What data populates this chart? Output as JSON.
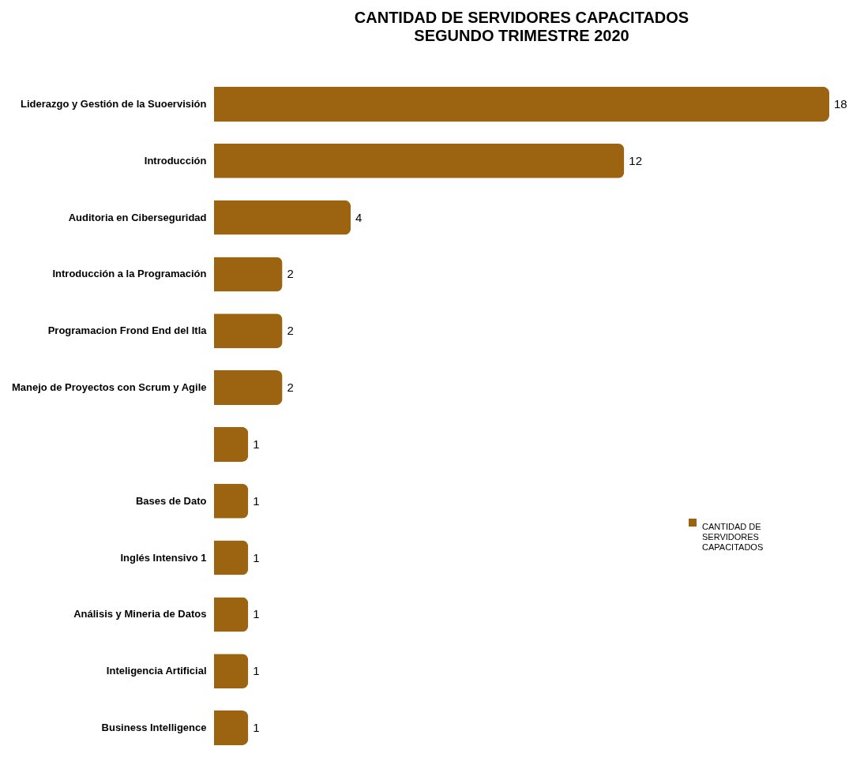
{
  "chart_data": {
    "type": "bar",
    "orientation": "horizontal",
    "title": "CANTIDAD DE SERVIDORES CAPACITADOS",
    "subtitle": "SEGUNDO TRIMESTRE 2020",
    "categories": [
      "Liderazgo y Gestión de la Suoervisión",
      "Introducción",
      "Auditoria en Ciberseguridad",
      "Introducción a la Programación",
      "Programacion Frond End del Itla",
      "Manejo de Proyectos con Scrum y Agile",
      null,
      "Bases de Dato",
      "Inglés Intensivo 1",
      "Análisis y Mineria de Datos",
      "Inteligencia Artificial",
      "Business Intelligence"
    ],
    "series": [
      {
        "name": "CANTIDAD DE SERVIDORES CAPACITADOS",
        "color": "#9c6410",
        "values": [
          18,
          12,
          4,
          2,
          2,
          2,
          1,
          1,
          1,
          1,
          1,
          1
        ]
      }
    ],
    "data_labels": true,
    "legend": "right",
    "tick_labels": "y"
  }
}
